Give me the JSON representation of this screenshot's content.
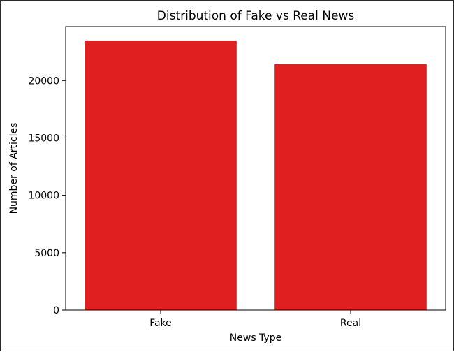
{
  "chart_data": {
    "type": "bar",
    "title": "Distribution of Fake vs Real News",
    "xlabel": "News Type",
    "ylabel": "Number of Articles",
    "categories": [
      "Fake",
      "Real"
    ],
    "values": [
      23481,
      21417
    ],
    "ylim": [
      0,
      24700
    ],
    "yticks": [
      0,
      5000,
      10000,
      15000,
      20000
    ],
    "ytick_labels": [
      "0",
      "5000",
      "10000",
      "15000",
      "20000"
    ],
    "bar_color": "#e02020",
    "grid": false,
    "legend": "none"
  }
}
